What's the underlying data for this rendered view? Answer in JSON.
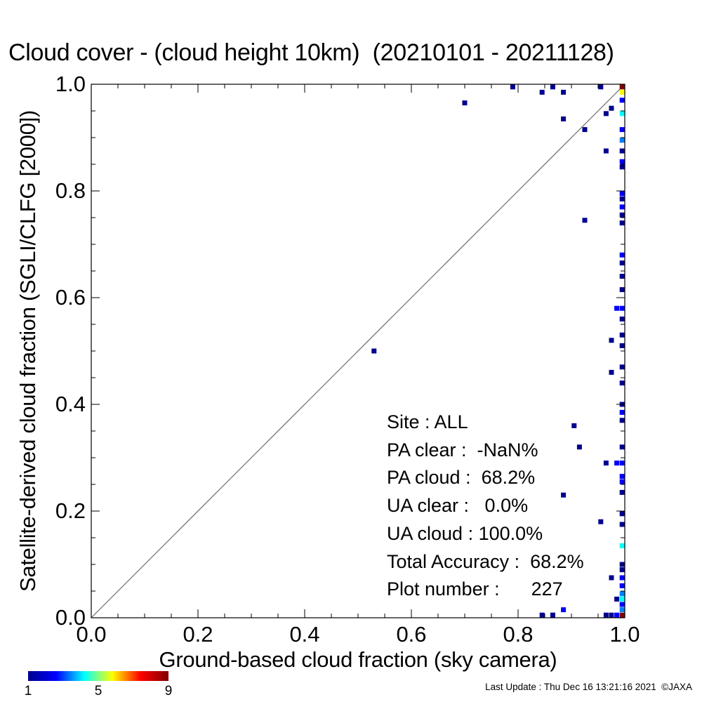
{
  "title": "Cloud cover - (cloud height 10km)  (20210101 - 20211128)",
  "stats": {
    "site": "Site : ALL",
    "pa_clear": "PA clear :  -NaN%",
    "pa_cloud": "PA cloud :  68.2%",
    "ua_clear": "UA clear :   0.0%",
    "ua_cloud": "UA cloud : 100.0%",
    "total_accuracy": "Total Accuracy :  68.2%",
    "plot_number": "Plot number :      227"
  },
  "colorbar": {
    "ticks": [
      "1",
      "5",
      "9"
    ]
  },
  "footer": "Last Update : Thu Dec 16 13:21:16 2021  ©JAXA",
  "colors": {
    "low": "#00008f",
    "mid": "#00ffff",
    "high": "#b00000",
    "line": "#000000"
  },
  "chart_data": {
    "type": "heatmap",
    "title": "Cloud cover - (cloud height 10km)  (20210101 - 20211128)",
    "xlabel": "Ground-based cloud fraction (sky camera)",
    "ylabel": "Satellite-derived cloud fraction (SGLI/CLFG [2000])",
    "xlim": [
      0.0,
      1.0
    ],
    "ylim": [
      0.0,
      1.0
    ],
    "x_ticks": [
      "0.0",
      "0.2",
      "0.4",
      "0.6",
      "0.8",
      "1.0"
    ],
    "y_ticks": [
      "0.0",
      "0.2",
      "0.4",
      "0.6",
      "0.8",
      "1.0"
    ],
    "reference_line": "1:1",
    "color_scale": {
      "min": 1,
      "max": 9,
      "label_ticks": [
        1,
        5,
        9
      ]
    },
    "cells": [
      {
        "x": 0.53,
        "y": 0.5,
        "count": 1
      },
      {
        "x": 0.7,
        "y": 0.965,
        "count": 1
      },
      {
        "x": 0.79,
        "y": 0.995,
        "count": 1
      },
      {
        "x": 0.845,
        "y": 0.985,
        "count": 1
      },
      {
        "x": 0.865,
        "y": 0.995,
        "count": 1
      },
      {
        "x": 0.885,
        "y": 0.985,
        "count": 1
      },
      {
        "x": 0.885,
        "y": 0.935,
        "count": 1
      },
      {
        "x": 0.925,
        "y": 0.915,
        "count": 1
      },
      {
        "x": 0.955,
        "y": 0.995,
        "count": 1
      },
      {
        "x": 0.965,
        "y": 0.945,
        "count": 1
      },
      {
        "x": 0.975,
        "y": 0.955,
        "count": 1
      },
      {
        "x": 0.965,
        "y": 0.875,
        "count": 1
      },
      {
        "x": 0.925,
        "y": 0.745,
        "count": 1
      },
      {
        "x": 0.905,
        "y": 0.36,
        "count": 1
      },
      {
        "x": 0.915,
        "y": 0.32,
        "count": 1
      },
      {
        "x": 0.965,
        "y": 0.29,
        "count": 1
      },
      {
        "x": 0.975,
        "y": 0.52,
        "count": 1
      },
      {
        "x": 0.975,
        "y": 0.46,
        "count": 1
      },
      {
        "x": 0.985,
        "y": 0.58,
        "count": 2
      },
      {
        "x": 0.985,
        "y": 0.29,
        "count": 2
      },
      {
        "x": 0.885,
        "y": 0.23,
        "count": 1
      },
      {
        "x": 0.955,
        "y": 0.18,
        "count": 1
      },
      {
        "x": 0.975,
        "y": 0.075,
        "count": 1
      },
      {
        "x": 0.985,
        "y": 0.035,
        "count": 1
      },
      {
        "x": 0.975,
        "y": 0.005,
        "count": 1
      },
      {
        "x": 0.845,
        "y": 0.005,
        "count": 1
      },
      {
        "x": 0.865,
        "y": 0.005,
        "count": 1
      },
      {
        "x": 0.885,
        "y": 0.015,
        "count": 2
      },
      {
        "x": 0.965,
        "y": 0.005,
        "count": 1
      },
      {
        "x": 0.985,
        "y": 0.005,
        "count": 2
      },
      {
        "x": 0.995,
        "y": 0.995,
        "count": 9
      },
      {
        "x": 0.995,
        "y": 0.985,
        "count": 6
      },
      {
        "x": 0.995,
        "y": 0.97,
        "count": 2
      },
      {
        "x": 0.995,
        "y": 0.945,
        "count": 4
      },
      {
        "x": 0.995,
        "y": 0.915,
        "count": 2
      },
      {
        "x": 0.995,
        "y": 0.895,
        "count": 3
      },
      {
        "x": 0.995,
        "y": 0.875,
        "count": 1
      },
      {
        "x": 0.995,
        "y": 0.855,
        "count": 2
      },
      {
        "x": 0.995,
        "y": 0.845,
        "count": 1
      },
      {
        "x": 0.995,
        "y": 0.795,
        "count": 2
      },
      {
        "x": 0.995,
        "y": 0.785,
        "count": 1
      },
      {
        "x": 0.995,
        "y": 0.77,
        "count": 2
      },
      {
        "x": 0.995,
        "y": 0.755,
        "count": 1
      },
      {
        "x": 0.995,
        "y": 0.74,
        "count": 1
      },
      {
        "x": 0.995,
        "y": 0.68,
        "count": 2
      },
      {
        "x": 0.995,
        "y": 0.665,
        "count": 1
      },
      {
        "x": 0.995,
        "y": 0.64,
        "count": 1
      },
      {
        "x": 0.995,
        "y": 0.615,
        "count": 1
      },
      {
        "x": 0.995,
        "y": 0.58,
        "count": 2
      },
      {
        "x": 0.995,
        "y": 0.56,
        "count": 1
      },
      {
        "x": 0.995,
        "y": 0.53,
        "count": 1
      },
      {
        "x": 0.995,
        "y": 0.51,
        "count": 1
      },
      {
        "x": 0.995,
        "y": 0.47,
        "count": 1
      },
      {
        "x": 0.995,
        "y": 0.44,
        "count": 1
      },
      {
        "x": 0.995,
        "y": 0.4,
        "count": 1
      },
      {
        "x": 0.995,
        "y": 0.385,
        "count": 2
      },
      {
        "x": 0.995,
        "y": 0.37,
        "count": 1
      },
      {
        "x": 0.995,
        "y": 0.32,
        "count": 1
      },
      {
        "x": 0.995,
        "y": 0.29,
        "count": 2
      },
      {
        "x": 0.995,
        "y": 0.265,
        "count": 2
      },
      {
        "x": 0.995,
        "y": 0.255,
        "count": 2
      },
      {
        "x": 0.995,
        "y": 0.235,
        "count": 1
      },
      {
        "x": 0.995,
        "y": 0.195,
        "count": 1
      },
      {
        "x": 0.995,
        "y": 0.175,
        "count": 1
      },
      {
        "x": 0.995,
        "y": 0.135,
        "count": 4
      },
      {
        "x": 0.995,
        "y": 0.1,
        "count": 1
      },
      {
        "x": 0.995,
        "y": 0.09,
        "count": 1
      },
      {
        "x": 0.995,
        "y": 0.075,
        "count": 2
      },
      {
        "x": 0.995,
        "y": 0.06,
        "count": 2
      },
      {
        "x": 0.995,
        "y": 0.045,
        "count": 3
      },
      {
        "x": 0.995,
        "y": 0.035,
        "count": 4
      },
      {
        "x": 0.995,
        "y": 0.025,
        "count": 2
      },
      {
        "x": 0.995,
        "y": 0.015,
        "count": 3
      },
      {
        "x": 0.995,
        "y": 0.005,
        "count": 9
      }
    ]
  }
}
